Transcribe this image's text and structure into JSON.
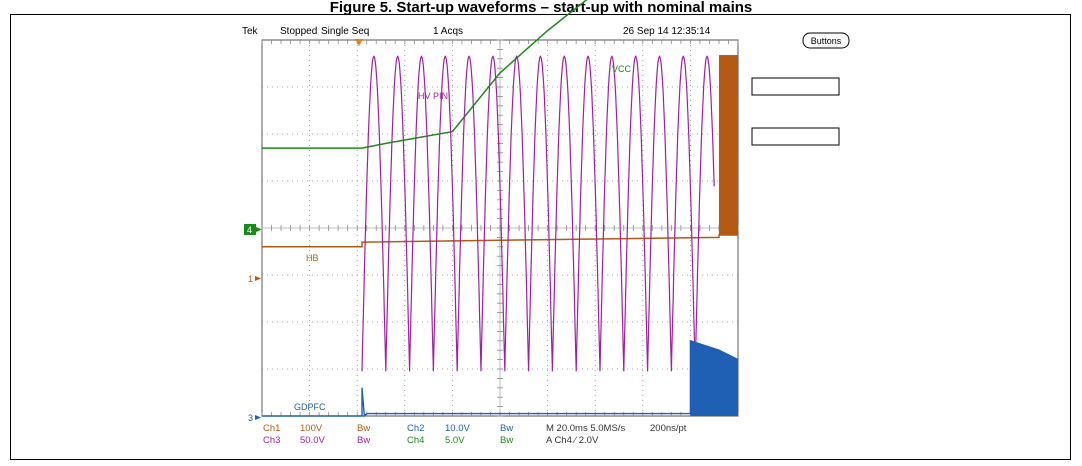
{
  "caption": "Figure 5. Start-up waveforms – start-up with nominal mains",
  "header": {
    "brand": "Tek",
    "state": "Stopped",
    "mode": "Single Seq",
    "acqs": "1 Acqs",
    "datetime": "26 Sep 14 12:35:14"
  },
  "buttons_label": "Buttons",
  "markers": {
    "ch4": "4",
    "ch1": "1",
    "ch3": "3"
  },
  "chart_data": {
    "type": "line",
    "title": "",
    "xlabel": "",
    "ylabel": "",
    "time_per_div": "20.0ms",
    "grid": true,
    "xlim_divisions": [
      0,
      10
    ],
    "series": [
      {
        "name": "VCC",
        "channel": "Ch4",
        "color": "#1a8a1a",
        "x": [
          0,
          2.1,
          2.6,
          4.0,
          5.0,
          6.0,
          7.0,
          8.0,
          9.0,
          9.5,
          9.7,
          9.9,
          10.0
        ],
        "y": [
          1.0,
          1.0,
          1.1,
          1.35,
          2.6,
          3.5,
          4.3,
          5.05,
          5.55,
          5.6,
          5.2,
          5.1,
          4.2
        ]
      },
      {
        "name": "HB",
        "channel": "Ch1",
        "color": "#b45a14",
        "x": [
          0,
          2.1,
          2.1,
          9.6,
          9.6,
          10.0
        ],
        "y": [
          -0.1,
          -0.1,
          0.0,
          0.1,
          0.15,
          0.15
        ]
      },
      {
        "name": "HV PIN",
        "channel": "Ch3",
        "color": "#a020a0",
        "start_div": 2.1,
        "end_div": 9.5,
        "period_div": 0.5,
        "peak_div": 7.5,
        "trough_div": 0.8
      },
      {
        "name": "GDPFC",
        "channel": "Ch2",
        "color": "#1f5fb4",
        "x": [
          0,
          2.1,
          2.1,
          2.15,
          2.2,
          9.0,
          9.0,
          9.6,
          10.0
        ],
        "y": [
          0,
          0,
          0.6,
          0,
          0.05,
          0.05,
          1.6,
          1.4,
          1.2
        ]
      }
    ]
  },
  "footer": {
    "ch1_label": "Ch1",
    "ch1_scale": "100V",
    "ch1_bw": "Bw",
    "ch2_label": "Ch2",
    "ch2_scale": "10.0V",
    "ch2_bw": "Bw",
    "ch3_label": "Ch3",
    "ch3_scale": "50.0V",
    "ch3_bw": "Bw",
    "ch4_label": "Ch4",
    "ch4_scale": "5.0V",
    "ch4_bw": "Bw",
    "timebase": "M 20.0ms 5.0MS/s",
    "record": "200ns/pt",
    "trigger": "A  Ch4  ∕  2.0V"
  },
  "colors": {
    "ch1": "#b45a14",
    "ch2": "#1f5fb4",
    "ch3": "#a020a0",
    "ch4": "#1a8a1a",
    "trigger_marker": "#e8801a",
    "grid": "#8a8a8a"
  }
}
